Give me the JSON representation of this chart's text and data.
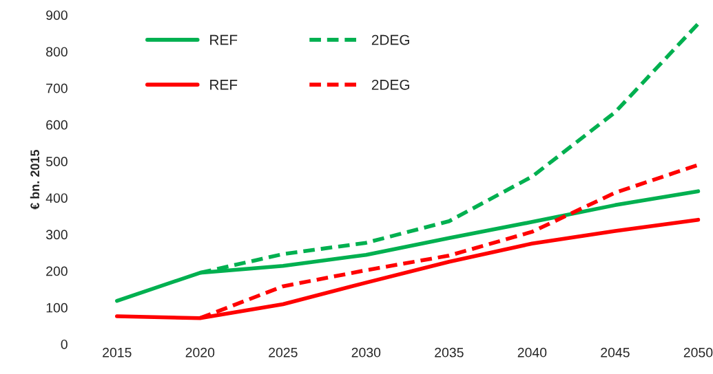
{
  "chart_data": {
    "type": "line",
    "ylabel": "€ bn. 2015",
    "categories": [
      "2015",
      "2020",
      "2025",
      "2030",
      "2035",
      "2040",
      "2045",
      "2050"
    ],
    "series": [
      {
        "name": "REF",
        "color": "#00b050",
        "line_style": "solid",
        "values": [
          118,
          195,
          214,
          244,
          290,
          334,
          380,
          418
        ]
      },
      {
        "name": "2DEG",
        "color": "#00b050",
        "line_style": "dashed",
        "values": [
          null,
          195,
          246,
          277,
          336,
          458,
          634,
          876
        ]
      },
      {
        "name": "REF",
        "color": "#ff0000",
        "line_style": "solid",
        "values": [
          76,
          71,
          109,
          168,
          225,
          275,
          309,
          340
        ]
      },
      {
        "name": "2DEG",
        "color": "#ff0000",
        "line_style": "dashed",
        "values": [
          null,
          71,
          158,
          202,
          242,
          307,
          414,
          490
        ]
      }
    ],
    "ylim": [
      0,
      900
    ],
    "yticks": [
      0,
      100,
      200,
      300,
      400,
      500,
      600,
      700,
      800,
      900
    ],
    "grid": false,
    "legend": "top left",
    "marker": "none"
  }
}
